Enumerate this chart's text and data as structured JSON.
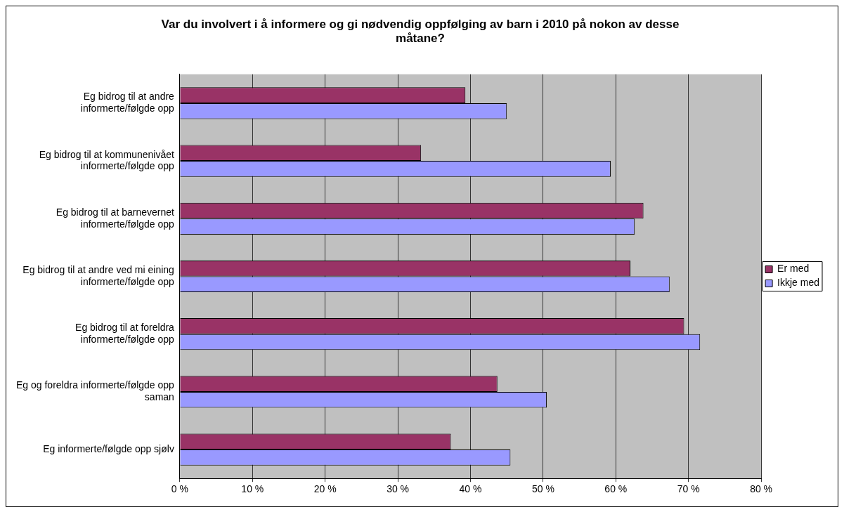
{
  "chart_data": {
    "type": "bar",
    "orientation": "horizontal",
    "title": "Var du involvert i å informere og gi nødvendig oppfølging av barn i 2010 på nokon av desse måtane?",
    "categories": [
      "Eg bidrog til at andre informerte/følgde opp",
      "Eg bidrog til at kommunenivået informerte/følgde opp",
      "Eg bidrog til at barnevernet informerte/følgde opp",
      "Eg bidrog til at andre ved mi eining informerte/følgde opp",
      "Eg bidrog til at foreldra informerte/følgde opp",
      "Eg og foreldra informerte/følgde opp saman",
      "Eg informerte/følgde opp sjølv"
    ],
    "series": [
      {
        "name": "Er med",
        "color": "#993366",
        "values": [
          39.3,
          33.2,
          63.8,
          62.0,
          69.4,
          43.7,
          37.3
        ]
      },
      {
        "name": "Ikkje med",
        "color": "#9999ff",
        "values": [
          45.0,
          59.3,
          62.6,
          67.4,
          71.6,
          50.5,
          45.5
        ]
      }
    ],
    "xlim": [
      0,
      80
    ],
    "xticks": [
      {
        "value": 0,
        "label": "0 %"
      },
      {
        "value": 10,
        "label": "10 %"
      },
      {
        "value": 20,
        "label": "20 %"
      },
      {
        "value": 30,
        "label": "30 %"
      },
      {
        "value": 40,
        "label": "40 %"
      },
      {
        "value": 50,
        "label": "50 %"
      },
      {
        "value": 60,
        "label": "60 %"
      },
      {
        "value": 70,
        "label": "70 %"
      },
      {
        "value": 80,
        "label": "80 %"
      }
    ],
    "grid": "x",
    "legend": "right"
  }
}
